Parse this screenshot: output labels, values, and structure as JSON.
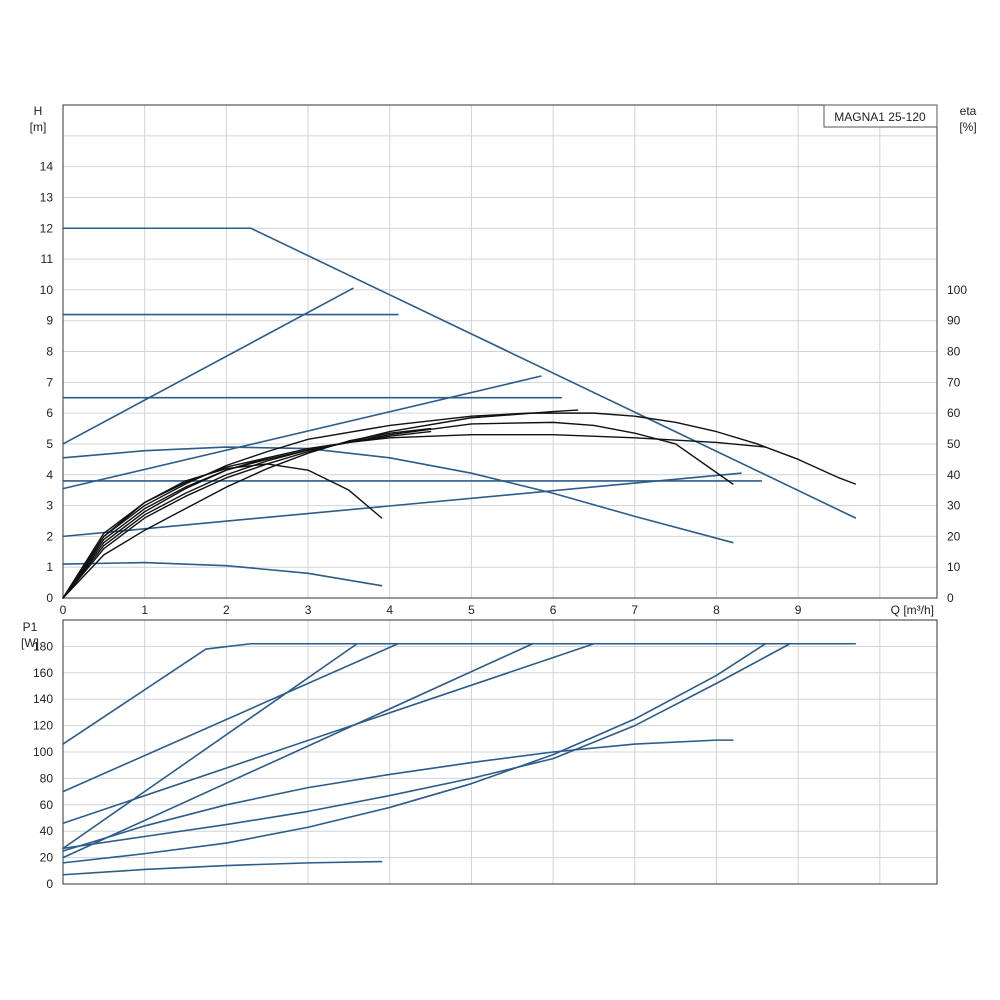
{
  "chart_data": [
    {
      "type": "line",
      "panel": "head-efficiency",
      "title": "MAGNA1 25-120",
      "ylabel": "H",
      "ylabel_unit": "[m]",
      "y2label": "eta",
      "y2label_unit": "[%]",
      "xlabel": "Q [m³/h]",
      "xlim": [
        0,
        10.7
      ],
      "ylim": [
        0,
        16
      ],
      "y2lim": [
        0,
        160
      ],
      "x_ticks": [
        0,
        1,
        2,
        3,
        4,
        5,
        6,
        7,
        8,
        9
      ],
      "y_ticks": [
        0,
        1,
        2,
        3,
        4,
        5,
        6,
        7,
        8,
        9,
        10,
        11,
        12,
        13,
        14
      ],
      "y2_ticks": [
        0,
        10,
        20,
        30,
        40,
        50,
        60,
        70,
        80,
        90,
        100
      ],
      "grid": true,
      "series": [
        {
          "role": "head",
          "color": "#2b5c8a",
          "points": [
            [
              0,
              12
            ],
            [
              2.3,
              12
            ],
            [
              9.7,
              2.6
            ]
          ]
        },
        {
          "role": "head",
          "color": "#2b5c8a",
          "points": [
            [
              0,
              9.2
            ],
            [
              4.1,
              9.2
            ]
          ]
        },
        {
          "role": "head",
          "color": "#2b5c8a",
          "points": [
            [
              0,
              6.5
            ],
            [
              6.1,
              6.5
            ]
          ]
        },
        {
          "role": "head",
          "color": "#2b5c8a",
          "points": [
            [
              0,
              3.8
            ],
            [
              8.55,
              3.8
            ]
          ]
        },
        {
          "role": "head",
          "color": "#2b5c8a",
          "points": [
            [
              0,
              4.55
            ],
            [
              1,
              4.78
            ],
            [
              2,
              4.9
            ],
            [
              3,
              4.85
            ],
            [
              4,
              4.55
            ],
            [
              5,
              4.05
            ],
            [
              6,
              3.4
            ],
            [
              7,
              2.65
            ],
            [
              8.2,
              1.8
            ]
          ]
        },
        {
          "role": "head",
          "color": "#2b5c8a",
          "points": [
            [
              0,
              1.1
            ],
            [
              1,
              1.15
            ],
            [
              2,
              1.05
            ],
            [
              3,
              0.8
            ],
            [
              3.9,
              0.4
            ]
          ]
        },
        {
          "role": "system",
          "color": "#2b5c8a",
          "points": [
            [
              0,
              5
            ],
            [
              3.55,
              10.05
            ]
          ]
        },
        {
          "role": "system",
          "color": "#2b5c8a",
          "points": [
            [
              0,
              3.55
            ],
            [
              5.85,
              7.2
            ]
          ]
        },
        {
          "role": "system",
          "color": "#2b5c8a",
          "points": [
            [
              0,
              2
            ],
            [
              8.3,
              4.05
            ]
          ]
        },
        {
          "role": "eta",
          "color": "#111111",
          "points": [
            [
              0,
              0
            ],
            [
              0.5,
              18
            ],
            [
              1,
              28
            ],
            [
              1.5,
              35.5
            ],
            [
              2,
              41.5
            ],
            [
              2.5,
              45.5
            ],
            [
              3,
              48.5
            ],
            [
              3.5,
              50.5
            ],
            [
              4,
              52
            ],
            [
              5,
              53
            ],
            [
              6,
              53
            ],
            [
              7,
              52
            ],
            [
              8,
              50.5
            ],
            [
              8.6,
              49
            ]
          ]
        },
        {
          "role": "eta",
          "color": "#111111",
          "points": [
            [
              0,
              0
            ],
            [
              0.5,
              20
            ],
            [
              1,
              30
            ],
            [
              1.5,
              37
            ],
            [
              2,
              43
            ],
            [
              2.5,
              47.5
            ],
            [
              3,
              51.5
            ],
            [
              4,
              56
            ],
            [
              5,
              59
            ],
            [
              5.7,
              60
            ],
            [
              6.5,
              60
            ],
            [
              7,
              59
            ],
            [
              7.5,
              57
            ],
            [
              8,
              54
            ],
            [
              8.5,
              50
            ],
            [
              9,
              45
            ],
            [
              9.5,
              39
            ],
            [
              9.7,
              37
            ]
          ]
        },
        {
          "role": "eta",
          "color": "#111111",
          "points": [
            [
              0,
              0
            ],
            [
              0.5,
              17
            ],
            [
              1,
              27
            ],
            [
              1.5,
              34
            ],
            [
              2,
              40
            ],
            [
              2.5,
              44.5
            ],
            [
              3,
              48
            ],
            [
              4,
              53
            ],
            [
              5,
              56.5
            ],
            [
              6,
              57
            ],
            [
              6.5,
              56
            ],
            [
              7,
              53.5
            ],
            [
              7.5,
              50
            ],
            [
              8.2,
              37
            ]
          ]
        },
        {
          "role": "eta",
          "color": "#111111",
          "points": [
            [
              0,
              0
            ],
            [
              0.5,
              16
            ],
            [
              1,
              26
            ],
            [
              1.5,
              33
            ],
            [
              2,
              39
            ],
            [
              2.5,
              43.5
            ],
            [
              3,
              47.5
            ],
            [
              4,
              54
            ],
            [
              5,
              58.5
            ],
            [
              6,
              60.5
            ],
            [
              6.3,
              61
            ]
          ]
        },
        {
          "role": "eta",
          "color": "#111111",
          "points": [
            [
              0,
              0
            ],
            [
              0.5,
              19
            ],
            [
              1,
              29
            ],
            [
              1.5,
              36
            ],
            [
              2,
              41.5
            ],
            [
              2.5,
              45
            ],
            [
              3,
              48
            ],
            [
              3.5,
              50.5
            ],
            [
              4,
              52.5
            ],
            [
              4.5,
              54
            ]
          ]
        },
        {
          "role": "eta",
          "color": "#111111",
          "points": [
            [
              0,
              0
            ],
            [
              0.5,
              21
            ],
            [
              1,
              31
            ],
            [
              1.5,
              38
            ],
            [
              2,
              42
            ],
            [
              2.5,
              43.5
            ],
            [
              3,
              41.5
            ],
            [
              3.5,
              35
            ],
            [
              3.9,
              26
            ]
          ]
        },
        {
          "role": "eta",
          "color": "#111111",
          "points": [
            [
              0,
              0
            ],
            [
              0.5,
              14
            ],
            [
              1,
              22
            ],
            [
              1.5,
              29
            ],
            [
              2,
              36
            ],
            [
              2.5,
              42
            ],
            [
              3,
              47
            ],
            [
              3.5,
              51
            ],
            [
              4,
              53.5
            ],
            [
              4.5,
              55
            ]
          ]
        },
        {
          "role": "eta",
          "color": "#111111",
          "points": [
            [
              0,
              0
            ],
            [
              0.5,
              20
            ],
            [
              1,
              31
            ],
            [
              1.5,
              37.5
            ],
            [
              2,
              42.5
            ],
            [
              2.5,
              45.5
            ]
          ]
        }
      ]
    },
    {
      "type": "line",
      "panel": "power",
      "ylabel": "P1",
      "ylabel_unit": "[W]",
      "xlim": [
        0,
        10.7
      ],
      "ylim": [
        0,
        200
      ],
      "x_ticks": [
        0,
        1,
        2,
        3,
        4,
        5,
        6,
        7,
        8,
        9
      ],
      "y_ticks": [
        0,
        20,
        40,
        60,
        80,
        100,
        120,
        140,
        160,
        180
      ],
      "grid": true,
      "series": [
        {
          "role": "power",
          "color": "#2b5c8a",
          "points": [
            [
              0,
              106
            ],
            [
              1.75,
              178
            ],
            [
              2.3,
              182
            ],
            [
              9.7,
              182
            ]
          ]
        },
        {
          "role": "power",
          "color": "#2b5c8a",
          "points": [
            [
              0,
              70
            ],
            [
              4.1,
              182
            ]
          ]
        },
        {
          "role": "power",
          "color": "#2b5c8a",
          "points": [
            [
              0,
              27
            ],
            [
              3.6,
              182
            ]
          ]
        },
        {
          "role": "power",
          "color": "#2b5c8a",
          "points": [
            [
              0,
              46
            ],
            [
              6.5,
              182
            ]
          ]
        },
        {
          "role": "power",
          "color": "#2b5c8a",
          "points": [
            [
              0,
              20
            ],
            [
              5.75,
              182
            ]
          ]
        },
        {
          "role": "power",
          "color": "#2b5c8a",
          "points": [
            [
              0,
              27
            ],
            [
              1,
              36
            ],
            [
              2,
              45
            ],
            [
              3,
              55
            ],
            [
              4,
              67
            ],
            [
              5,
              80
            ],
            [
              6,
              95
            ],
            [
              7,
              120
            ],
            [
              8,
              152
            ],
            [
              8.9,
              182
            ]
          ]
        },
        {
          "role": "power",
          "color": "#2b5c8a",
          "points": [
            [
              0,
              16
            ],
            [
              1,
              23
            ],
            [
              2,
              31
            ],
            [
              3,
              43
            ],
            [
              4,
              58
            ],
            [
              5,
              76
            ],
            [
              6,
              98
            ],
            [
              7,
              125
            ],
            [
              8,
              158
            ],
            [
              8.6,
              182
            ]
          ]
        },
        {
          "role": "power",
          "color": "#2b5c8a",
          "points": [
            [
              0,
              25
            ],
            [
              1,
              44
            ],
            [
              2,
              60
            ],
            [
              3,
              73
            ],
            [
              4,
              83
            ],
            [
              5,
              92
            ],
            [
              6,
              100
            ],
            [
              7,
              106
            ],
            [
              8,
              109
            ],
            [
              8.2,
              109
            ]
          ]
        },
        {
          "role": "power",
          "color": "#2b5c8a",
          "points": [
            [
              0,
              7
            ],
            [
              1,
              11
            ],
            [
              2,
              14
            ],
            [
              3,
              16
            ],
            [
              3.9,
              17
            ]
          ]
        }
      ]
    }
  ]
}
